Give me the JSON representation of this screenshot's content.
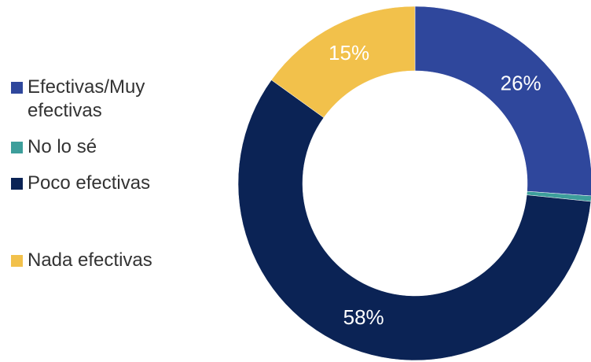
{
  "chart_data": {
    "type": "donut",
    "categories": [
      "Efectivas/Muy efectivas",
      "No lo sé",
      "Poco efectivas",
      "Nada efectivas"
    ],
    "values": [
      26,
      0.5,
      58,
      15
    ],
    "value_labels": [
      "26%",
      null,
      "58%",
      "15%"
    ],
    "colors": [
      "#2f479c",
      "#3d9e9b",
      "#0b2355",
      "#f2c14b"
    ],
    "legend": "left"
  }
}
